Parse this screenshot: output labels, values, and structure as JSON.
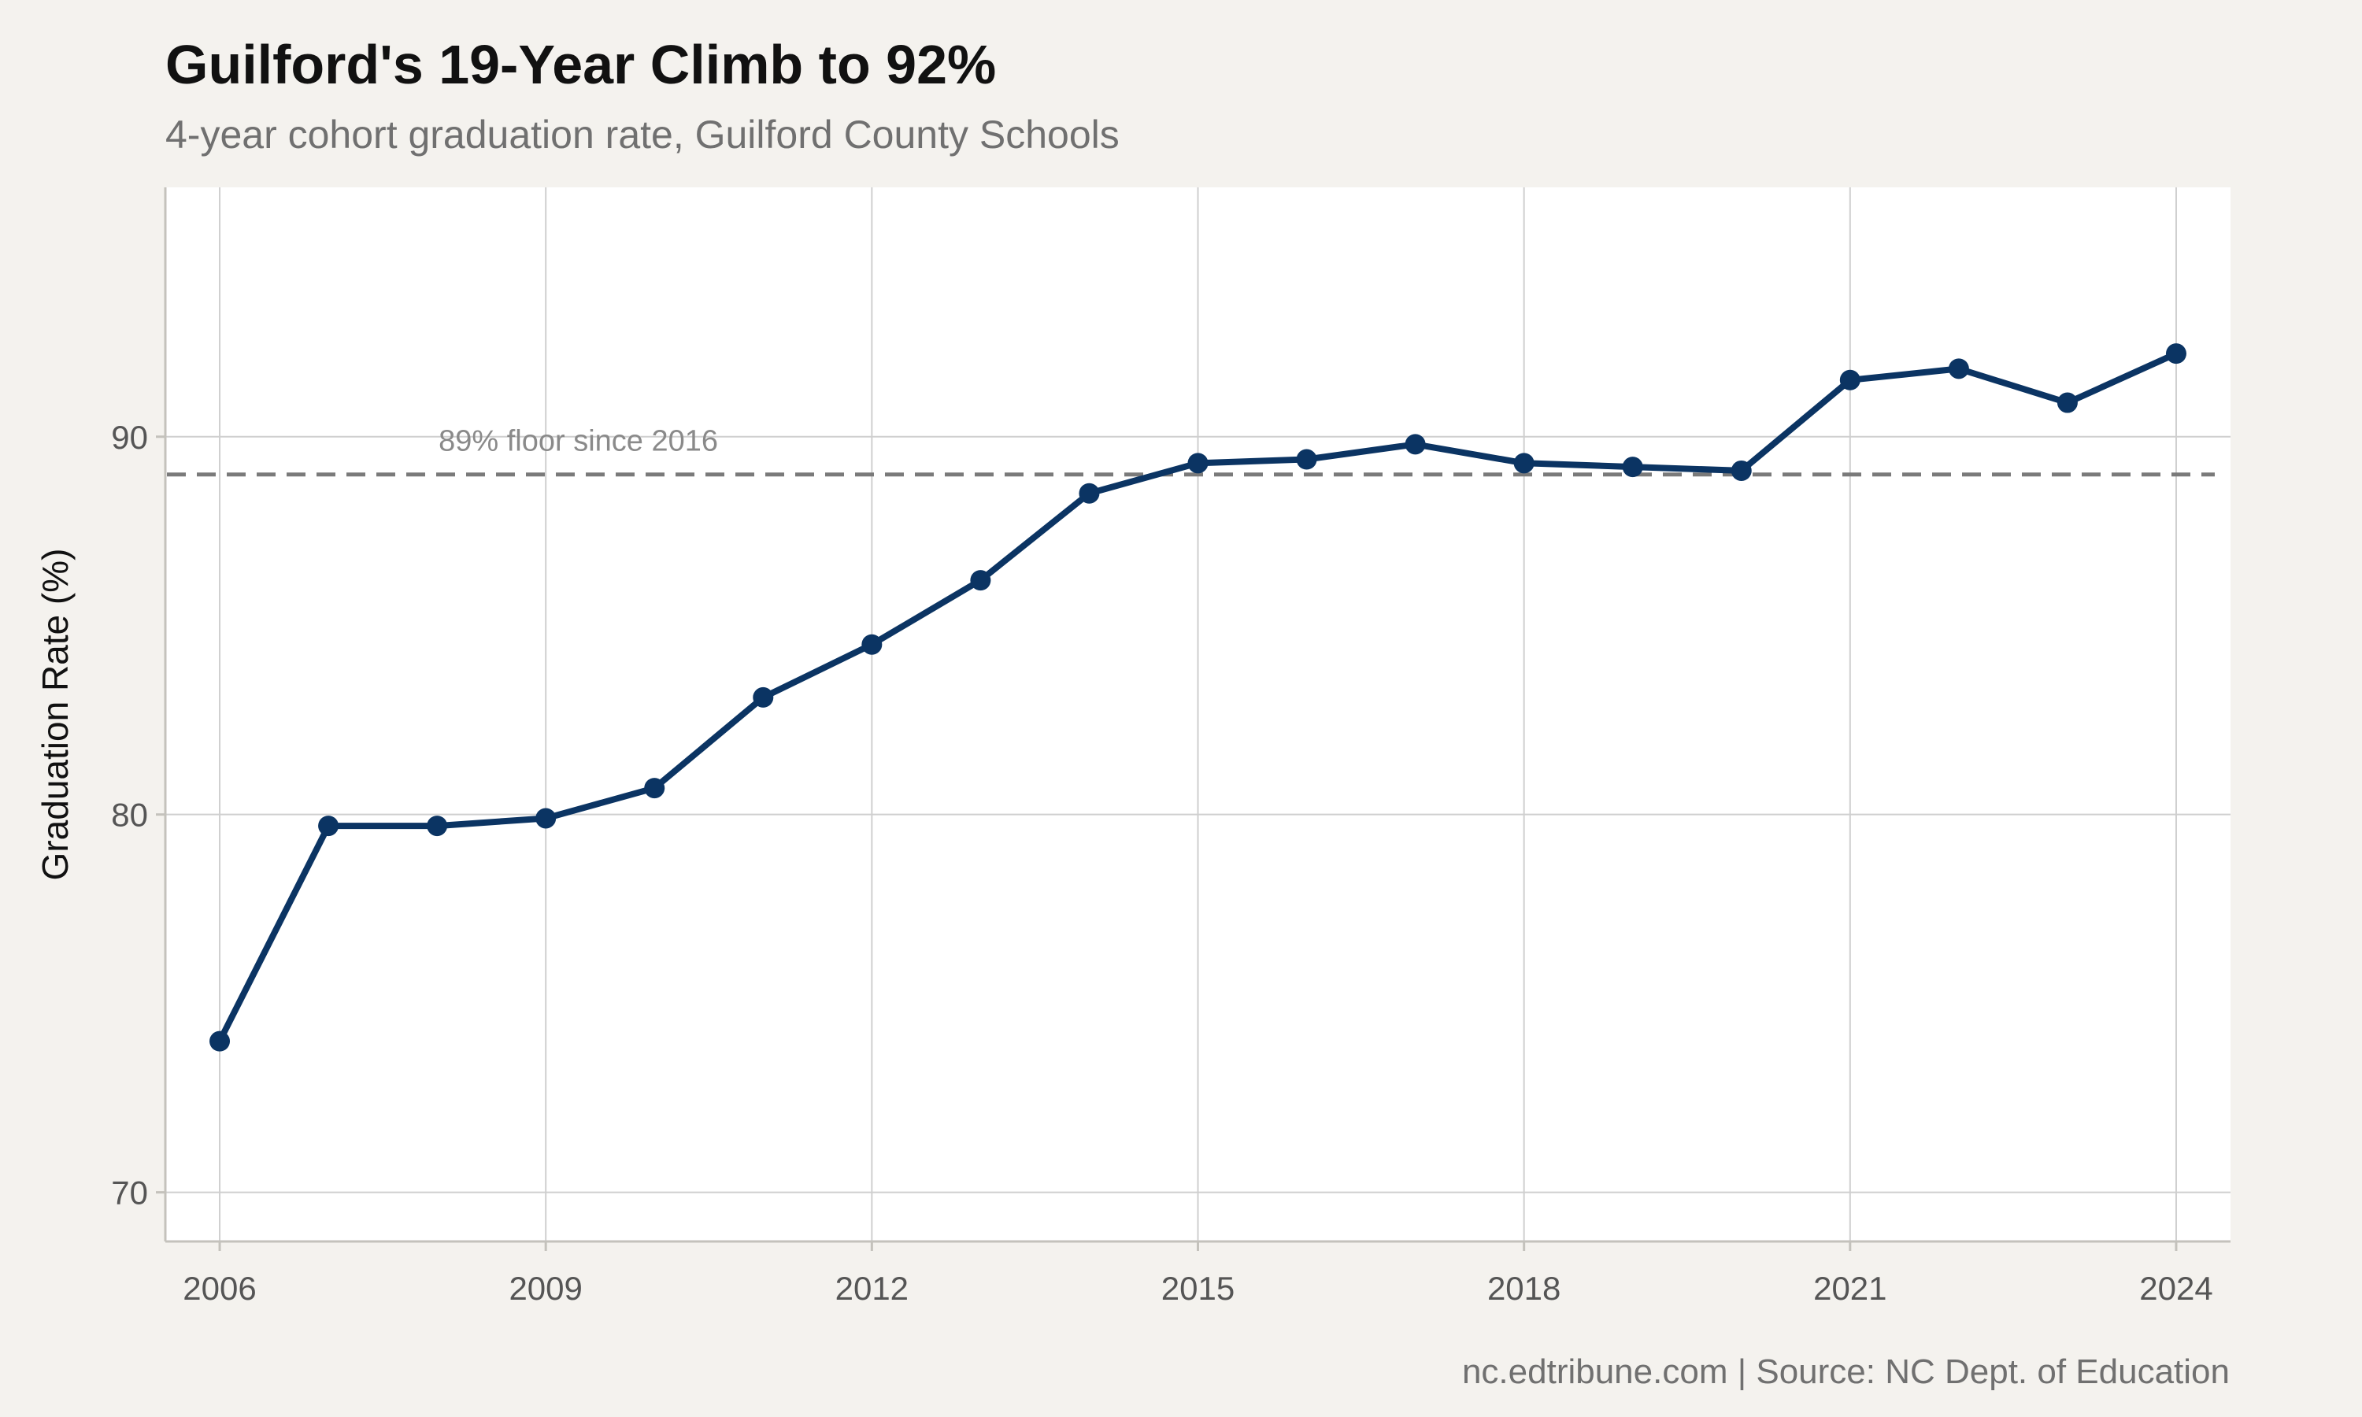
{
  "header": {
    "title": "Guilford's 19-Year Climb to 92%",
    "subtitle": "4-year cohort graduation rate, Guilford County Schools"
  },
  "footer": {
    "caption": "nc.edtribune.com | Source: NC Dept. of Education"
  },
  "colors": {
    "line": "#0b3463",
    "reference": "#7a7a7a",
    "panel": "#ffffff",
    "background": "#f4f2ee",
    "grid": "#cfcfcf"
  },
  "chart_data": {
    "type": "line",
    "title": "Guilford's 19-Year Climb to 92%",
    "subtitle": "4-year cohort graduation rate, Guilford County Schools",
    "xlabel": "",
    "ylabel": "Graduation Rate (%)",
    "xlim": [
      2005.5,
      2024.5
    ],
    "ylim": [
      68.7,
      96.6
    ],
    "xticks": [
      2006,
      2009,
      2012,
      2015,
      2018,
      2021,
      2024
    ],
    "yticks": [
      70,
      80,
      90
    ],
    "grid": true,
    "x": [
      2006,
      2007,
      2008,
      2009,
      2010,
      2011,
      2012,
      2013,
      2014,
      2015,
      2016,
      2017,
      2018,
      2019,
      2020,
      2021,
      2022,
      2023,
      2024
    ],
    "series": [
      {
        "values": [
          74.0,
          79.7,
          79.7,
          79.9,
          80.7,
          83.1,
          84.5,
          86.2,
          88.5,
          89.3,
          89.4,
          89.8,
          89.3,
          89.2,
          89.1,
          91.5,
          91.8,
          90.9,
          92.2
        ]
      }
    ],
    "reference_line": {
      "y": 89,
      "style": "dashed",
      "label": "89% floor since 2016"
    }
  }
}
